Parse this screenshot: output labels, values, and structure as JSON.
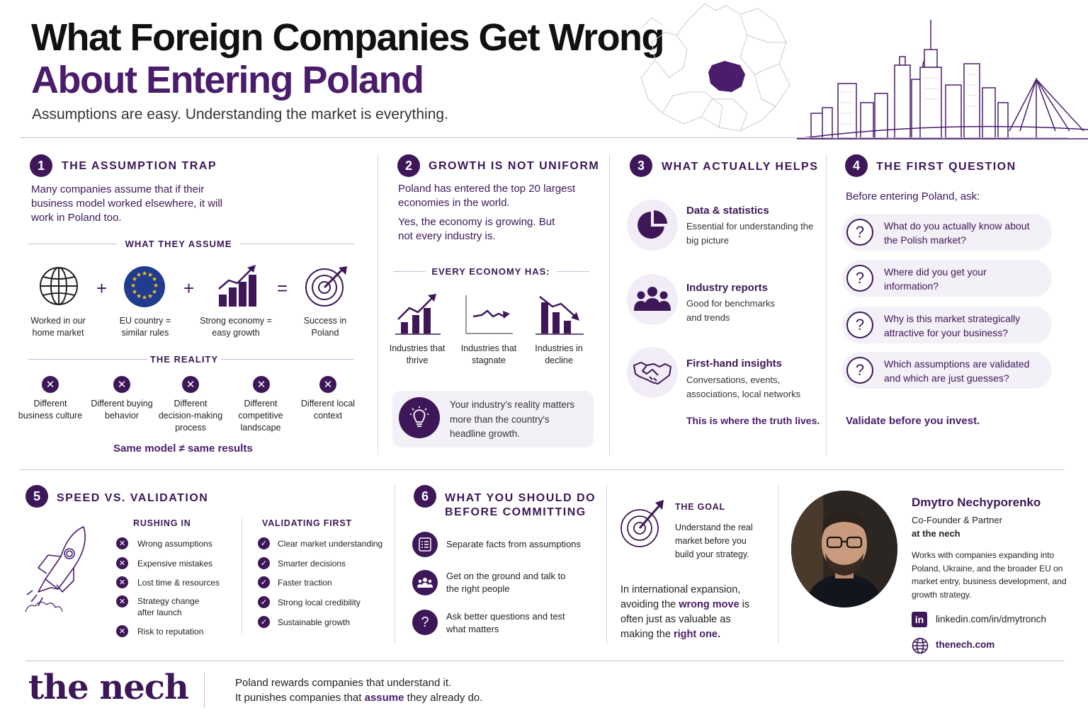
{
  "header": {
    "title_line1": "What Foreign Companies Get Wrong",
    "title_line2": "About Entering Poland",
    "subtitle": "Assumptions are easy. Understanding the market is everything."
  },
  "s1": {
    "num": "1",
    "title": "THE ASSUMPTION TRAP",
    "intro": "Many companies assume that if their business model worked elsewhere, it will work in Poland too.",
    "assume_label": "WHAT THEY ASSUME",
    "assumptions": [
      "Worked in our home market",
      "EU country = similar rules",
      "Strong economy = easy growth",
      "Success in Poland"
    ],
    "ops": [
      "+",
      "+",
      "="
    ],
    "reality_label": "THE REALITY",
    "reality": [
      "Different business culture",
      "Different buying behavior",
      "Different decision-making process",
      "Different competitive landscape",
      "Different local context"
    ],
    "conclusion": "Same model ≠ same results"
  },
  "s2": {
    "num": "2",
    "title": "GROWTH IS NOT UNIFORM",
    "p1": "Poland has entered the top 20 largest economies in the world.",
    "p2": "Yes, the economy is growing. But not every industry is.",
    "every_label": "EVERY ECONOMY HAS:",
    "industries": [
      "Industries that thrive",
      "Industries that stagnate",
      "Industries in decline"
    ],
    "callout": "Your industry's reality matters more than the country's headline growth."
  },
  "s3": {
    "num": "3",
    "title": "WHAT ACTUALLY HELPS",
    "items": [
      {
        "title": "Data & statistics",
        "sub": "Essential for understanding the big picture"
      },
      {
        "title": "Industry reports",
        "sub": "Good for benchmarks and trends"
      },
      {
        "title": "First-hand insights",
        "sub": "Conversations, events, associations, local networks"
      }
    ],
    "tagline": "This is where the truth lives."
  },
  "s4": {
    "num": "4",
    "title": "THE FIRST QUESTION",
    "intro": "Before entering Poland, ask:",
    "questions": [
      "What do you actually know about the Polish market?",
      "Where did you get your information?",
      "Why is this market strategically attractive for your business?",
      "Which assumptions are validated and which are just guesses?"
    ],
    "q_mark": "?",
    "tagline": "Validate before you invest."
  },
  "s5": {
    "num": "5",
    "title": "SPEED VS. VALIDATION",
    "rushing_label": "RUSHING IN",
    "rushing": [
      "Wrong assumptions",
      "Expensive mistakes",
      "Lost time & resources",
      "Strategy change after launch",
      "Risk to reputation"
    ],
    "validating_label": "VALIDATING FIRST",
    "validating": [
      "Clear market understanding",
      "Smarter decisions",
      "Faster traction",
      "Strong local credibility",
      "Sustainable growth"
    ]
  },
  "s6": {
    "num": "6",
    "title_line1": "WHAT YOU SHOULD DO",
    "title_line2": "BEFORE COMMITTING",
    "steps": [
      "Separate facts from assumptions",
      "Get on the ground and talk to the right people",
      "Ask better questions and test what matters"
    ]
  },
  "goal": {
    "label": "THE GOAL",
    "text": "Understand the real market before you build your strategy.",
    "quote_a": "In international expansion, avoiding the ",
    "quote_b": "wrong move",
    "quote_c": " is often just as valuable as making the ",
    "quote_d": "right one."
  },
  "profile": {
    "name": "Dmytro Nechyporenko",
    "role": "Co-Founder & Partner",
    "company": "at the nech",
    "bio": "Works with companies expanding into Poland, Ukraine, and the broader EU on market entry, business development, and growth strategy.",
    "linkedin": "linkedin.com/in/dmytronch",
    "linkedin_icon": "in",
    "website": "thenech.com"
  },
  "footer": {
    "logo": "the nech",
    "line1": "Poland rewards companies that understand it.",
    "line2a": "It punishes companies that ",
    "line2b": "assume",
    "line2c": " they already do."
  },
  "colors": {
    "primary": "#3d1758",
    "accent": "#4a1c6b",
    "pill": "#f4f0f7"
  }
}
